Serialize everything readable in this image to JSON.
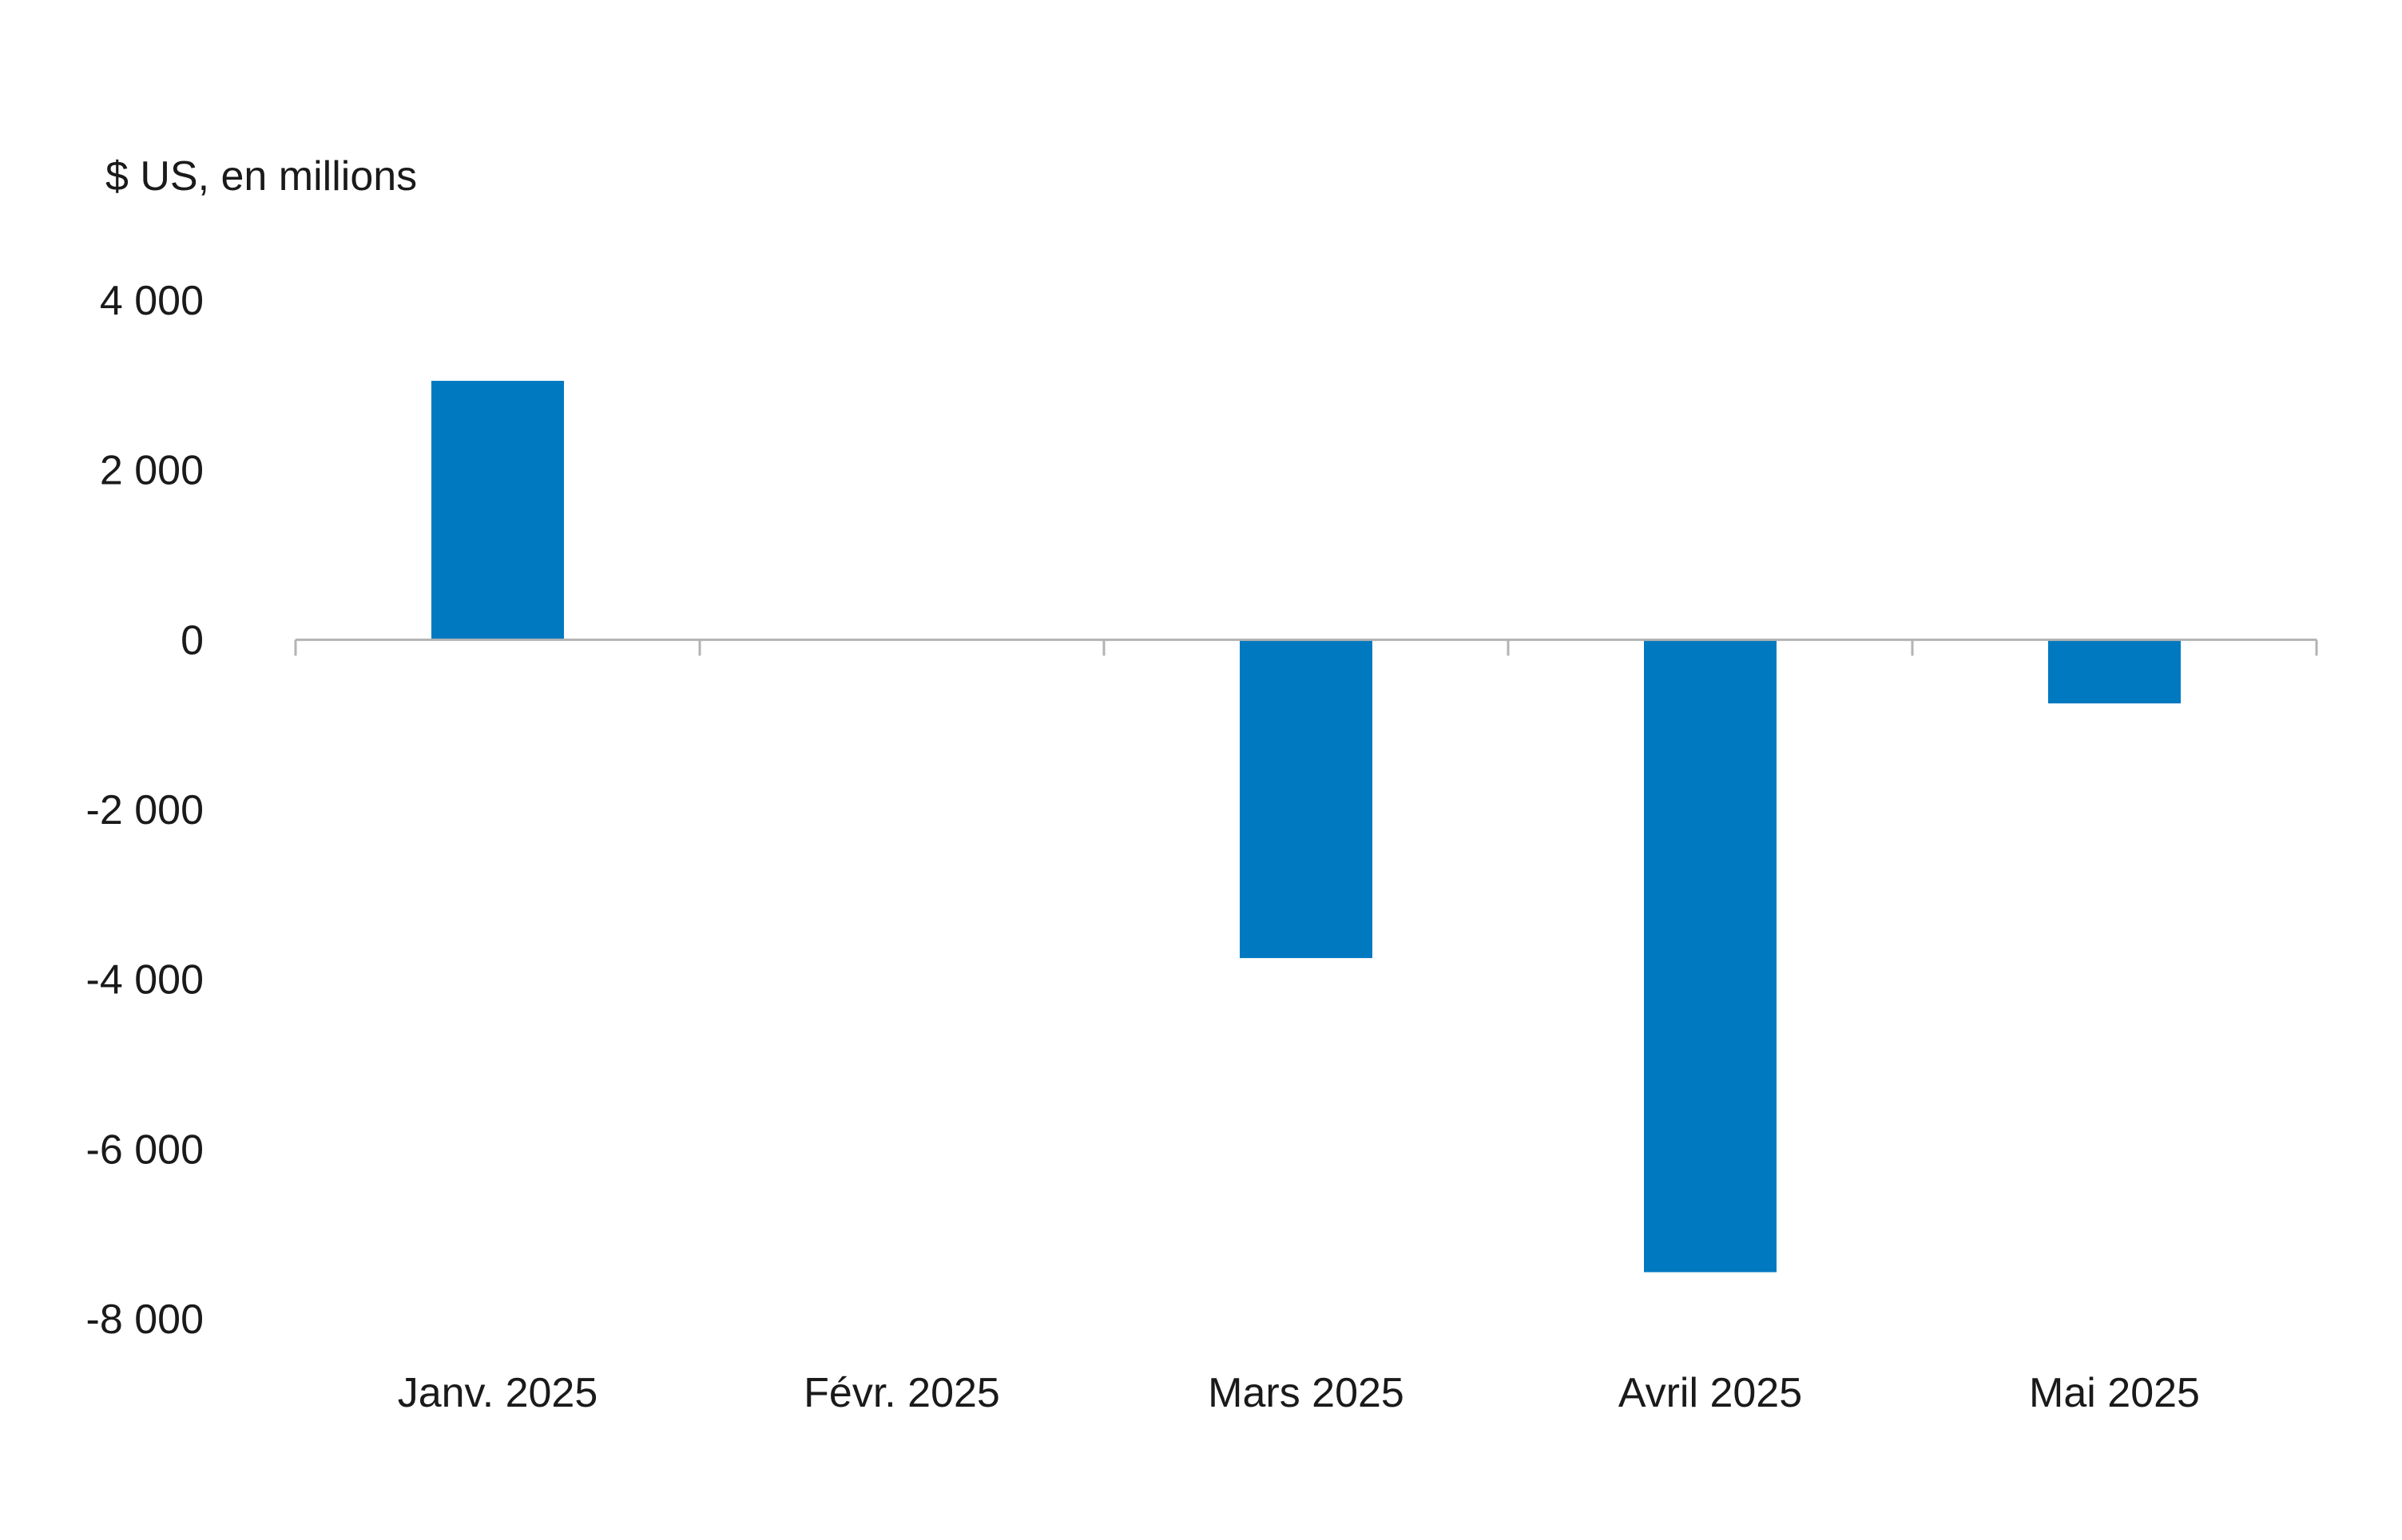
{
  "chart_data": {
    "type": "bar",
    "ylabel": "$ US, en millions",
    "categories": [
      "Janv. 2025",
      "Févr. 2025",
      "Mars 2025",
      "Avril 2025",
      "Mai 2025"
    ],
    "values": [
      3050,
      0,
      -3750,
      -7450,
      -750
    ],
    "ylim": [
      -8000,
      4000
    ],
    "yticks": [
      4000,
      2000,
      0,
      -2000,
      -4000,
      -6000,
      -8000
    ],
    "ytick_labels": [
      "4 000",
      "2 000",
      "0",
      "-2 000",
      "-4 000",
      "-6 000",
      "-8 000"
    ],
    "grid": false,
    "legend": "none",
    "colors": {
      "bar": "#0079C1",
      "axis": "#b3b3b3",
      "text": "#1a1a1a"
    }
  }
}
